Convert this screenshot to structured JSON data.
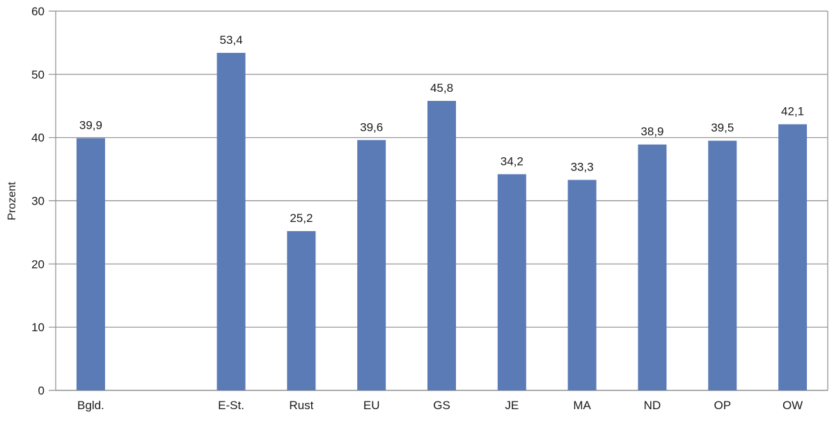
{
  "chart_data": {
    "type": "bar",
    "title": "",
    "xlabel": "",
    "ylabel": "Prozent",
    "ylim": [
      0,
      60
    ],
    "yticks": [
      0,
      10,
      20,
      30,
      40,
      50,
      60
    ],
    "grid": true,
    "categories": [
      "Bgld.",
      "",
      "E-St.",
      "Rust",
      "EU",
      "GS",
      "JE",
      "MA",
      "ND",
      "OP",
      "OW"
    ],
    "values": [
      39.9,
      null,
      53.4,
      25.2,
      39.6,
      45.8,
      34.2,
      33.3,
      38.9,
      39.5,
      42.1
    ],
    "value_labels": [
      "39,9",
      "",
      "53,4",
      "25,2",
      "39,6",
      "45,8",
      "34,2",
      "33,3",
      "38,9",
      "39,5",
      "42,1"
    ],
    "colors": {
      "bar": "#5b7bb7",
      "grid": "#8c8c8c",
      "axis": "#8c8c8c"
    }
  }
}
